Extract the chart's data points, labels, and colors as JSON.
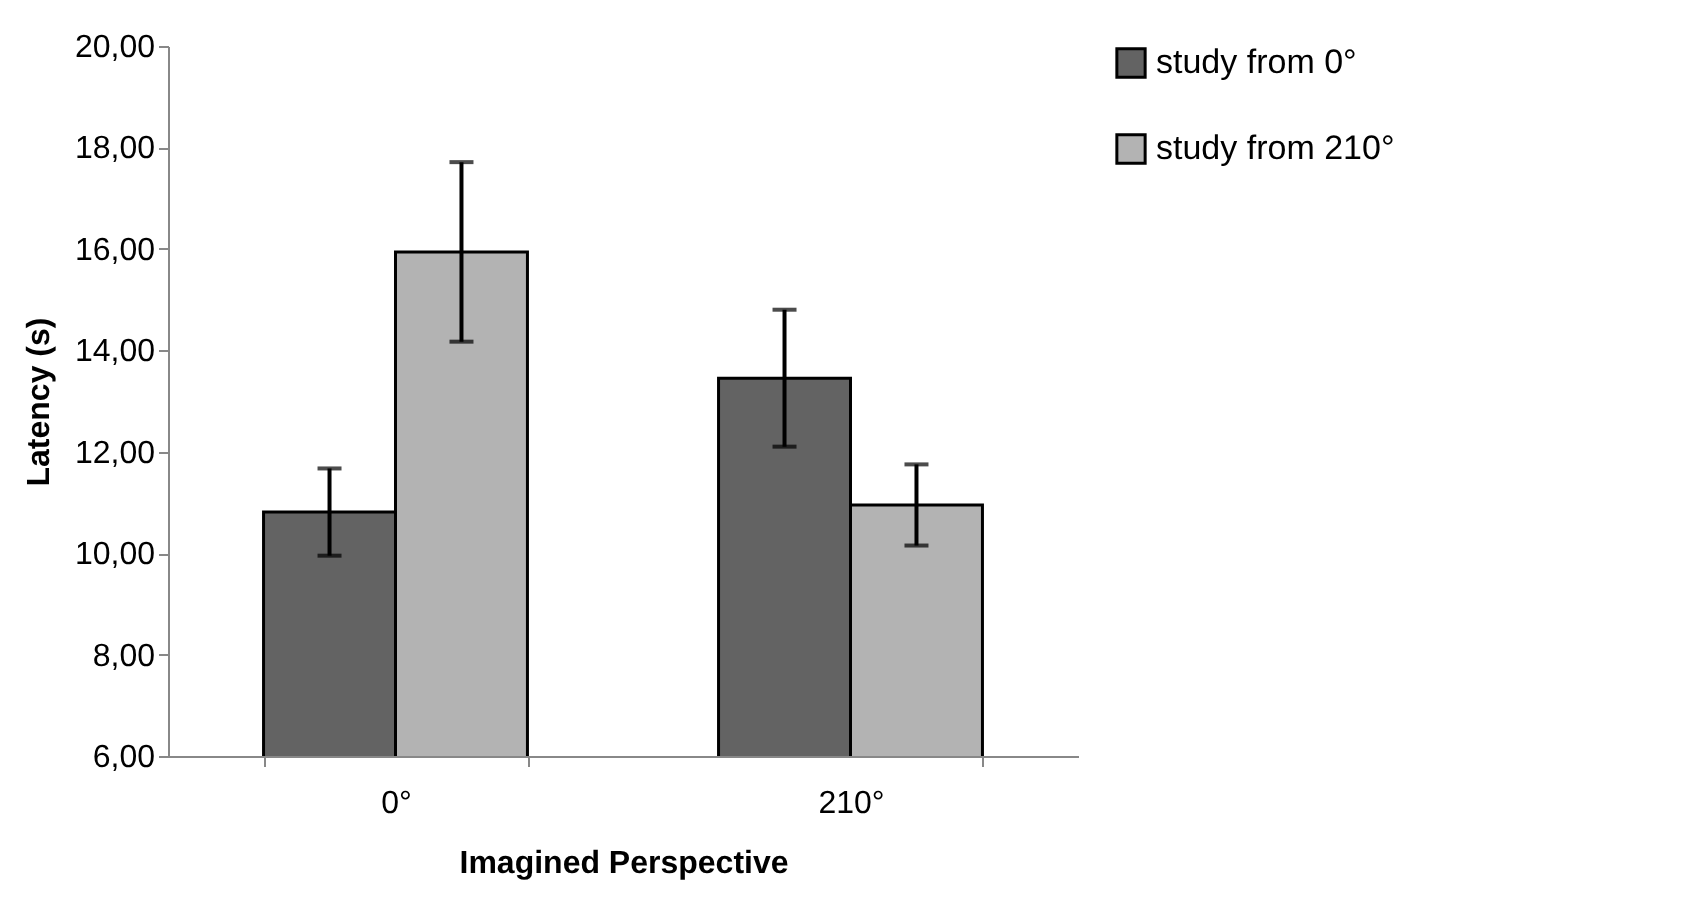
{
  "chart_data": {
    "type": "bar",
    "xlabel": "Imagined Perspective",
    "ylabel": "Latency (s)",
    "categories": [
      "0°",
      "210°"
    ],
    "series": [
      {
        "name": "study from 0°",
        "color": "#636363",
        "values": [
          10.81,
          13.45
        ],
        "errors": [
          0.86,
          1.35
        ]
      },
      {
        "name": "study from 210°",
        "color": "#b3b3b3",
        "values": [
          15.94,
          10.95
        ],
        "errors": [
          1.77,
          0.8
        ]
      }
    ],
    "ylim": [
      6,
      20
    ],
    "yticks": [
      {
        "value": 6,
        "label": "6,00"
      },
      {
        "value": 8,
        "label": "8,00"
      },
      {
        "value": 10,
        "label": "10,00"
      },
      {
        "value": 12,
        "label": "12,00"
      },
      {
        "value": 14,
        "label": "14,00"
      },
      {
        "value": 16,
        "label": "16,00"
      },
      {
        "value": 18,
        "label": "18,00"
      },
      {
        "value": 20,
        "label": "20,00"
      }
    ],
    "grid": false,
    "legend": "right"
  }
}
